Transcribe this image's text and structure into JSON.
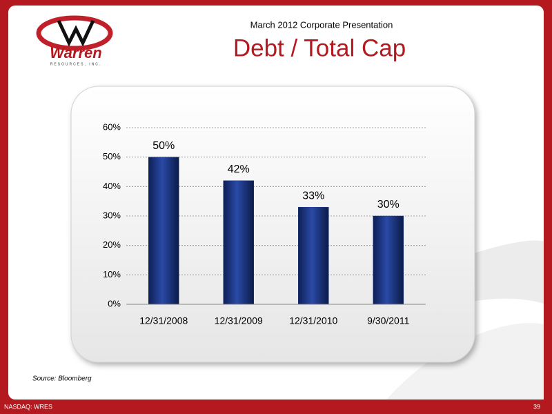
{
  "header": {
    "subtitle": "March 2012 Corporate Presentation",
    "logo_name": "Warren",
    "logo_tagline": "RESOURCES, INC."
  },
  "chart_data": {
    "type": "bar",
    "title": "Debt / Total Cap",
    "categories": [
      "12/31/2008",
      "12/31/2009",
      "12/31/2010",
      "9/30/2011"
    ],
    "values": [
      50,
      42,
      33,
      30
    ],
    "value_labels": [
      "50%",
      "42%",
      "33%",
      "30%"
    ],
    "color": "#1f3a8a",
    "ylim": [
      0,
      60
    ],
    "yticks": [
      {
        "value": 0,
        "label": "0%"
      },
      {
        "value": 10,
        "label": "10%"
      },
      {
        "value": 20,
        "label": "20%"
      },
      {
        "value": 30,
        "label": "30%"
      },
      {
        "value": 40,
        "label": "40%"
      },
      {
        "value": 50,
        "label": "50%"
      },
      {
        "value": 60,
        "label": "60%"
      }
    ],
    "grid": true
  },
  "source": "Source: Bloomberg",
  "footer": {
    "ticker": "NASDAQ: WRES",
    "page": "39"
  }
}
